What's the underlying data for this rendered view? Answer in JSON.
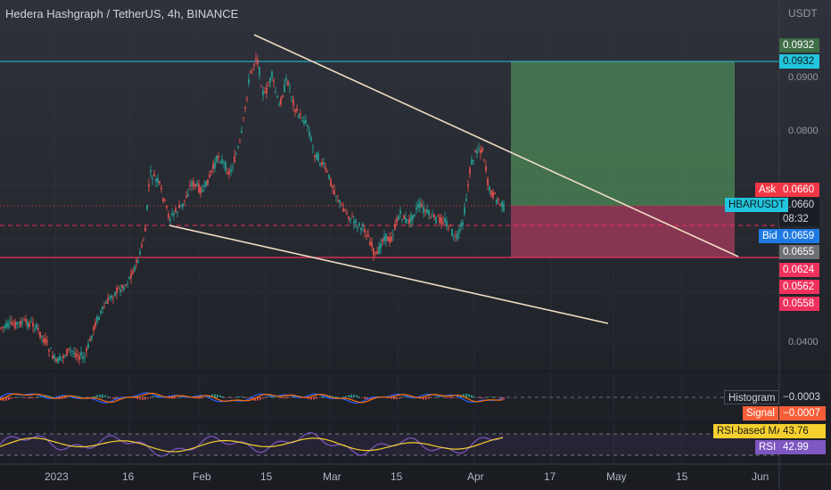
{
  "header": {
    "symbol_title": "Hedera Hashgraph / TetherUS, 4h, BINANCE",
    "currency": "USDT"
  },
  "price_axis": {
    "ticks": [
      "0.0900",
      "0.0800",
      "0.0400"
    ]
  },
  "price_labels": [
    {
      "value": "0.0932",
      "bg": "#3e6e46",
      "fg": "#ffffff"
    },
    {
      "value": "0.0932",
      "bg": "#22c5dd",
      "fg": "#0b1a1e"
    },
    {
      "value": "0.0660",
      "bg": "#f23645",
      "fg": "#ffffff"
    },
    {
      "value": "0.0660",
      "bg": "#1b1d24",
      "fg": "#d1d4dc"
    },
    {
      "value": "08:32",
      "bg": "#1b1d24",
      "fg": "#d1d4dc"
    },
    {
      "value": "0.0659",
      "bg": "#1f7ae0",
      "fg": "#ffffff"
    },
    {
      "value": "0.0655",
      "bg": "#6e6f73",
      "fg": "#ffffff"
    },
    {
      "value": "0.0624",
      "bg": "#f0305c",
      "fg": "#ffffff"
    },
    {
      "value": "0.0562",
      "bg": "#f0305c",
      "fg": "#ffffff"
    },
    {
      "value": "0.0558",
      "bg": "#f0305c",
      "fg": "#ffffff"
    }
  ],
  "side_tags": {
    "ask": "Ask",
    "symbol": "HBARUSDT",
    "bid": "Bid"
  },
  "indicators": {
    "macd": {
      "histogram_label": "Histogram",
      "histogram_value": "−0.0003",
      "signal_label": "Signal",
      "signal_value": "−0.0007"
    },
    "rsi": {
      "ma_label": "RSI-based MA",
      "ma_value": "43.76",
      "rsi_label": "RSI",
      "rsi_value": "42.99"
    }
  },
  "time_axis": {
    "ticks": [
      "2023",
      "16",
      "Feb",
      "15",
      "Mar",
      "15",
      "Apr",
      "17",
      "May",
      "15",
      "Jun"
    ]
  },
  "colors": {
    "up": "#26a69a",
    "down": "#ef5350",
    "cyan_line": "#22c5dd",
    "stop_line": "#f0305c",
    "trend_line": "#f1dcc4",
    "profit_zone": "#4c8a57",
    "loss_zone": "#a83b5e",
    "macd_line": "#2962ff",
    "signal_line": "#ff6d00",
    "rsi_line": "#7e57c2",
    "rsi_ma": "#f5d02e"
  }
}
